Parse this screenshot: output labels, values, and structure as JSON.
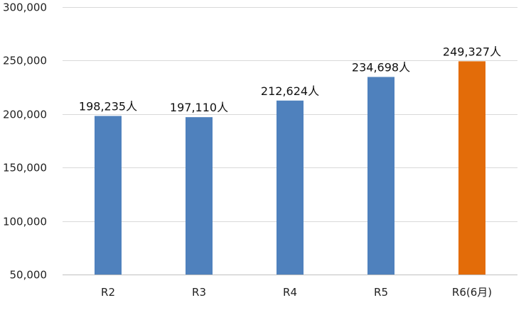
{
  "chart_data": {
    "type": "bar",
    "categories": [
      "R2",
      "R3",
      "R4",
      "R5",
      "R6(6月)"
    ],
    "values": [
      198235,
      197110,
      212624,
      234698,
      249327
    ],
    "data_labels": [
      "198,235人",
      "197,110人",
      "212,624人",
      "234,698人",
      "249,327人"
    ],
    "bar_colors": [
      "#4f81bd",
      "#4f81bd",
      "#4f81bd",
      "#4f81bd",
      "#e36c09"
    ],
    "ylim": [
      50000,
      300000
    ],
    "yticks": [
      "50,000",
      "100,000",
      "150,000",
      "200,000",
      "250,000",
      "300,000"
    ],
    "ytick_values": [
      50000,
      100000,
      150000,
      200000,
      250000,
      300000
    ],
    "grid": true,
    "legend": "none"
  }
}
